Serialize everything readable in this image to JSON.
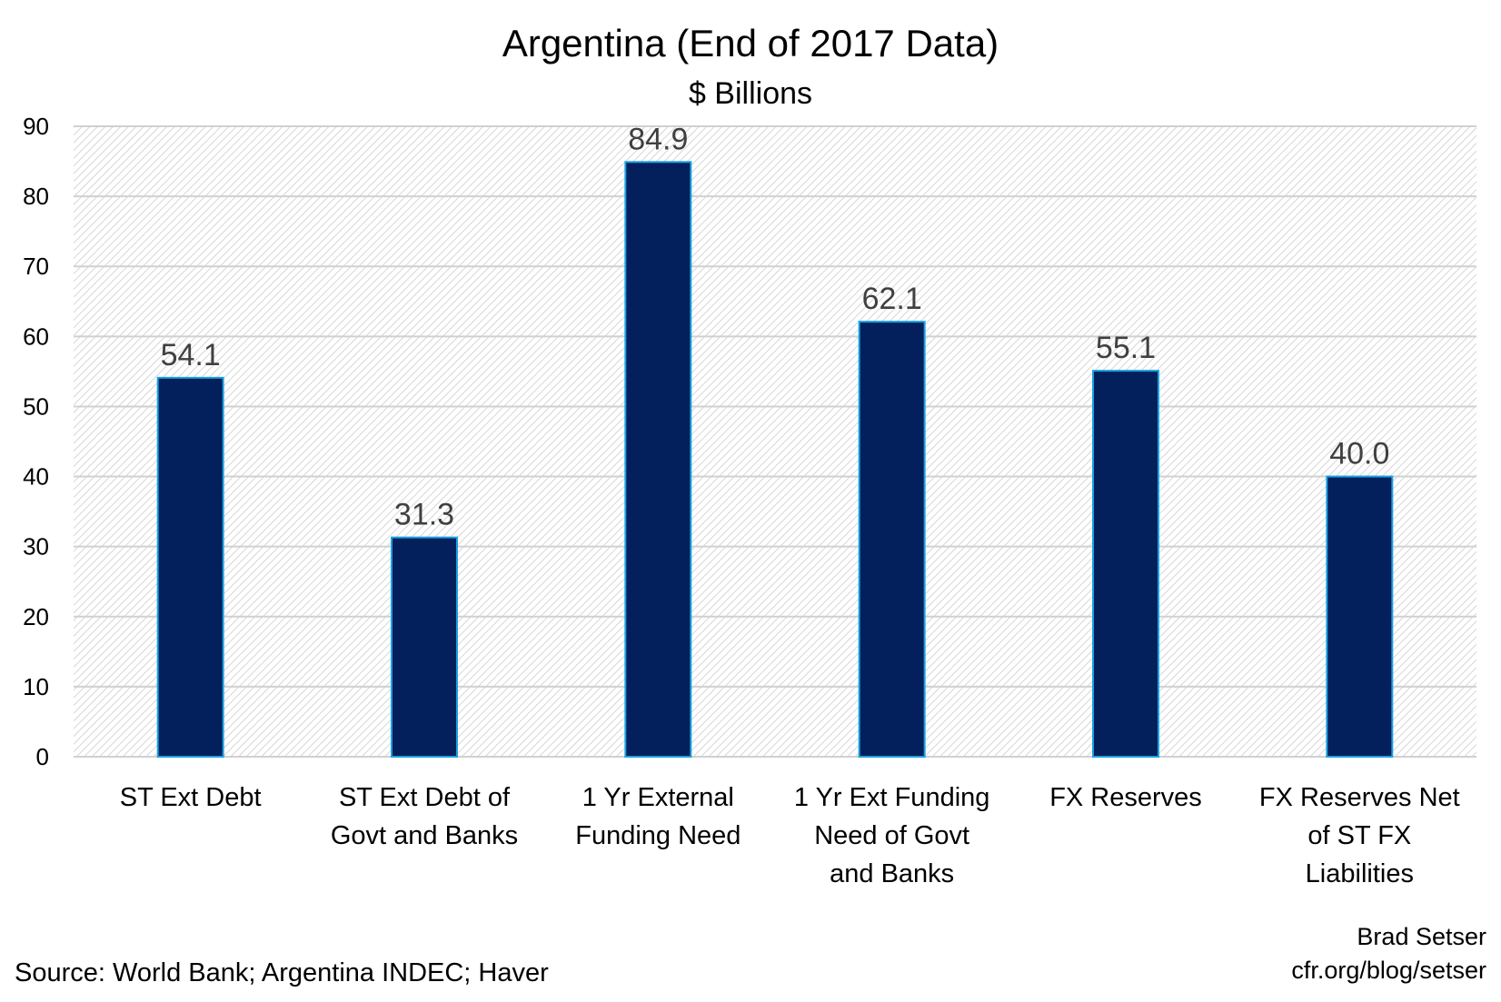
{
  "chart_data": {
    "type": "bar",
    "title": "Argentina (End of 2017 Data)",
    "subtitle": "$ Billions",
    "categories": [
      [
        "ST Ext Debt"
      ],
      [
        "ST Ext Debt of",
        "Govt and Banks"
      ],
      [
        "1 Yr External",
        "Funding Need"
      ],
      [
        "1 Yr Ext Funding",
        "Need of Govt",
        "and Banks"
      ],
      [
        "FX Reserves"
      ],
      [
        "FX Reserves Net",
        "of ST FX",
        "Liabilities"
      ]
    ],
    "values": [
      54.1,
      31.3,
      84.9,
      62.1,
      55.1,
      40.0
    ],
    "data_labels": [
      "54.1",
      "31.3",
      "84.9",
      "62.1",
      "55.1",
      "40.0"
    ],
    "ylim": [
      0,
      90
    ],
    "yticks": [
      0,
      10,
      20,
      30,
      40,
      50,
      60,
      70,
      80,
      90
    ],
    "grid": true,
    "bar_color": "#03205c",
    "bar_edge_color": "#1ba1e2",
    "source": "Source: World Bank; Argentina INDEC; Haver",
    "credit": [
      "Brad Setser",
      "cfr.org/blog/setser"
    ]
  }
}
